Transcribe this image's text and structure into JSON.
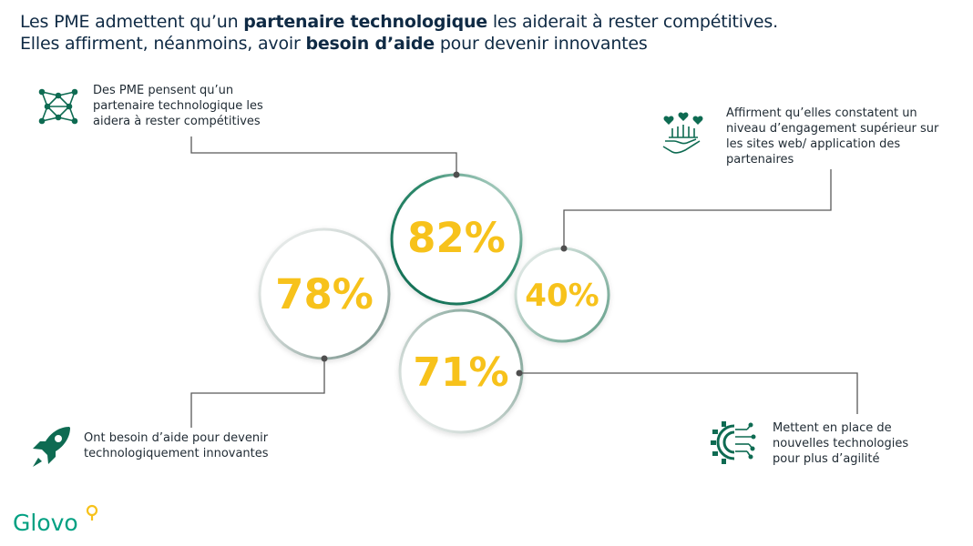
{
  "title": {
    "line1_a": "Les PME admettent qu’un ",
    "line1_b": "partenaire technologique",
    "line1_c": " les aiderait à rester compétitives.",
    "line2_a": "Elles affirment, néanmoins, avoir ",
    "line2_b": "besoin d’aide",
    "line2_c": " pour devenir innovantes"
  },
  "stats": [
    {
      "id": "partner",
      "value": "82%",
      "text": "Des PME pensent qu’un partenaire technologique les aidera à rester compétitives",
      "icon": "network-icon"
    },
    {
      "id": "help",
      "value": "78%",
      "text": "Ont besoin d’aide pour devenir technologiquement innovantes",
      "icon": "rocket-icon"
    },
    {
      "id": "engagement",
      "value": "40%",
      "text": "Affirment qu’elles constatent un niveau d’engagement supérieur sur les sites web/ application des partenaires",
      "icon": "hand-hearts-icon"
    },
    {
      "id": "newtech",
      "value": "71%",
      "text": "Mettent en place de nouvelles technologies pour plus d’agilité",
      "icon": "gear-circuit-icon"
    }
  ],
  "colors": {
    "accent": "#f7c21b",
    "green": "#0e6b52",
    "brand": "#00a082"
  },
  "logo": {
    "text": "Glovo"
  }
}
